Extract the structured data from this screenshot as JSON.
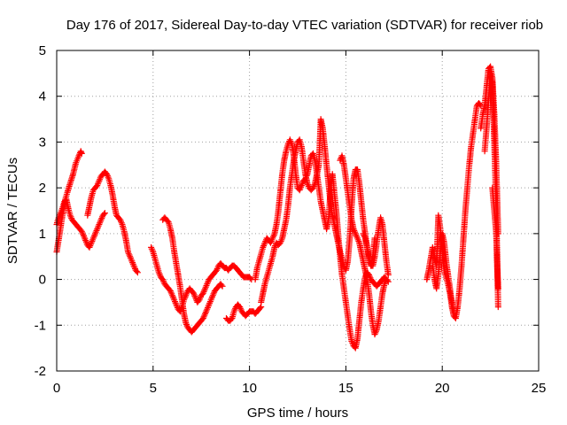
{
  "chart_data": {
    "type": "scatter",
    "title": "Day 176 of 2017, Sidereal Day-to-day VTEC variation (SDTVAR) for receiver riob",
    "xlabel": "GPS time / hours",
    "ylabel": "SDTVAR / TECUs",
    "xlim": [
      0,
      25
    ],
    "ylim": [
      -2,
      5
    ],
    "x_ticks": [
      0,
      5,
      10,
      15,
      20,
      25
    ],
    "y_ticks": [
      -2,
      -1,
      0,
      1,
      2,
      3,
      4,
      5
    ],
    "grid": true,
    "marker": "plus",
    "color": "#ff0000",
    "series": [
      {
        "name": "SDTVAR",
        "segments": [
          {
            "x": [
              0.0,
              0.15,
              0.3,
              0.45,
              0.55,
              0.7,
              0.85,
              1.0,
              1.15,
              1.25,
              1.3
            ],
            "y": [
              0.6,
              1.0,
              1.4,
              1.75,
              1.9,
              2.1,
              2.3,
              2.55,
              2.7,
              2.8,
              2.75
            ]
          },
          {
            "x": [
              0.0,
              0.1,
              0.2,
              0.3,
              0.4,
              0.5,
              0.6,
              0.7,
              0.8,
              0.9,
              1.0,
              1.1,
              1.2,
              1.3,
              1.4,
              1.5,
              1.6,
              1.7,
              1.8,
              1.9,
              2.0,
              2.1,
              2.2,
              2.3,
              2.4,
              2.5
            ],
            "y": [
              1.2,
              1.35,
              1.45,
              1.55,
              1.7,
              1.75,
              1.55,
              1.4,
              1.3,
              1.25,
              1.2,
              1.15,
              1.1,
              1.05,
              0.95,
              0.85,
              0.75,
              0.7,
              0.8,
              0.9,
              1.0,
              1.1,
              1.2,
              1.3,
              1.4,
              1.45
            ]
          },
          {
            "x": [
              1.6,
              1.7,
              1.8,
              1.9,
              2.0,
              2.1,
              2.2,
              2.3,
              2.4,
              2.5,
              2.6,
              2.7,
              2.8,
              2.9,
              3.0,
              3.1,
              3.2,
              3.3,
              3.4,
              3.5,
              3.6,
              3.7,
              3.8,
              3.9,
              4.0,
              4.1,
              4.2
            ],
            "y": [
              1.4,
              1.6,
              1.8,
              1.95,
              2.0,
              2.05,
              2.15,
              2.25,
              2.3,
              2.35,
              2.3,
              2.2,
              2.05,
              1.85,
              1.6,
              1.4,
              1.35,
              1.3,
              1.2,
              1.05,
              0.85,
              0.6,
              0.5,
              0.4,
              0.3,
              0.2,
              0.15
            ]
          },
          {
            "x": [
              4.9,
              5.0,
              5.1,
              5.2,
              5.3,
              5.4,
              5.5,
              5.6,
              5.7,
              5.8,
              5.9,
              6.0,
              6.1,
              6.2,
              6.3,
              6.4,
              6.5,
              6.6,
              6.7,
              6.8,
              6.9,
              7.0,
              7.1,
              7.2,
              7.3,
              7.4,
              7.5,
              7.6,
              7.7,
              7.8,
              7.9,
              8.0,
              8.1,
              8.2,
              8.3,
              8.4,
              8.5,
              8.6,
              8.7,
              8.8,
              8.9,
              9.0,
              9.1,
              9.2,
              9.3,
              9.4,
              9.5,
              9.6,
              9.7,
              9.8,
              9.9,
              10.0,
              10.1
            ],
            "y": [
              0.7,
              0.6,
              0.45,
              0.3,
              0.15,
              0.05,
              0.0,
              -0.1,
              -0.15,
              -0.2,
              -0.25,
              -0.35,
              -0.45,
              -0.55,
              -0.65,
              -0.7,
              -0.6,
              -0.45,
              -0.35,
              -0.25,
              -0.2,
              -0.25,
              -0.3,
              -0.4,
              -0.5,
              -0.45,
              -0.35,
              -0.3,
              -0.2,
              -0.1,
              0.0,
              0.05,
              0.1,
              0.15,
              0.2,
              0.3,
              0.35,
              0.3,
              0.25,
              0.25,
              0.2,
              0.25,
              0.3,
              0.3,
              0.25,
              0.2,
              0.15,
              0.1,
              0.05,
              0.05,
              0.05,
              0.05,
              0.0
            ]
          },
          {
            "x": [
              5.5,
              5.6,
              5.7,
              5.8,
              5.9,
              6.0,
              6.1,
              6.2,
              6.3,
              6.4,
              6.5,
              6.6,
              6.7,
              6.8,
              6.9,
              7.0,
              7.1,
              7.2,
              7.3,
              7.4,
              7.5,
              7.6,
              7.7,
              7.8,
              7.9,
              8.0,
              8.1,
              8.2,
              8.3,
              8.4,
              8.5,
              8.6
            ],
            "y": [
              1.3,
              1.35,
              1.3,
              1.25,
              1.1,
              0.9,
              0.6,
              0.35,
              0.1,
              -0.15,
              -0.45,
              -0.75,
              -0.95,
              -1.05,
              -1.1,
              -1.15,
              -1.1,
              -1.05,
              -1.0,
              -0.95,
              -0.9,
              -0.85,
              -0.75,
              -0.65,
              -0.55,
              -0.45,
              -0.35,
              -0.25,
              -0.2,
              -0.15,
              -0.1,
              -0.15
            ]
          },
          {
            "x": [
              8.8,
              8.9,
              9.0,
              9.1,
              9.2,
              9.3,
              9.4,
              9.5,
              9.6,
              9.7,
              9.8,
              9.9,
              10.0,
              10.1,
              10.2,
              10.3,
              10.4,
              10.5,
              10.6
            ],
            "y": [
              -0.85,
              -0.9,
              -0.9,
              -0.85,
              -0.7,
              -0.6,
              -0.55,
              -0.6,
              -0.7,
              -0.75,
              -0.8,
              -0.75,
              -0.7,
              -0.7,
              -0.7,
              -0.75,
              -0.7,
              -0.65,
              -0.6
            ]
          },
          {
            "x": [
              10.3,
              10.4,
              10.5,
              10.6,
              10.7,
              10.8,
              10.9,
              11.0,
              11.1,
              11.2,
              11.3,
              11.4,
              11.5,
              11.6,
              11.7,
              11.8,
              11.9,
              12.0,
              12.1,
              12.2,
              12.3,
              12.4,
              12.5,
              12.6,
              12.7,
              12.8,
              12.9,
              13.0,
              13.1,
              13.2,
              13.3,
              13.4,
              13.5,
              13.6,
              13.7,
              13.8,
              13.9,
              14.0,
              14.1,
              14.2,
              14.3,
              14.4,
              14.5,
              14.6,
              14.7,
              14.8,
              14.9,
              15.0,
              15.1,
              15.2,
              15.3,
              15.4,
              15.5,
              15.6,
              15.7,
              15.8,
              15.9,
              16.0,
              16.1,
              16.2,
              16.3,
              16.4,
              16.5,
              16.6,
              16.7,
              16.8,
              16.9,
              17.0,
              17.1,
              17.2
            ],
            "y": [
              0.0,
              0.25,
              0.4,
              0.55,
              0.7,
              0.8,
              0.9,
              0.85,
              0.8,
              0.9,
              1.0,
              1.2,
              1.5,
              1.9,
              2.3,
              2.6,
              2.8,
              2.95,
              3.05,
              2.95,
              2.7,
              2.3,
              2.0,
              1.95,
              2.05,
              2.15,
              2.2,
              2.3,
              2.5,
              2.7,
              2.75,
              2.6,
              2.3,
              2.0,
              1.7,
              1.5,
              1.3,
              1.1,
              1.3,
              1.9,
              2.3,
              1.9,
              1.5,
              1.0,
              0.5,
              0.1,
              -0.2,
              -0.5,
              -0.8,
              -1.1,
              -1.35,
              -1.45,
              -1.5,
              -1.3,
              -0.9,
              -0.5,
              -0.2,
              0.05,
              0.15,
              0.1,
              0.0,
              -0.05,
              -0.1,
              -0.15,
              -0.1,
              -0.05,
              0.0,
              0.05,
              0.0,
              -0.05
            ]
          },
          {
            "x": [
              10.6,
              10.7,
              10.8,
              10.9,
              11.0,
              11.1,
              11.2,
              11.3,
              11.4,
              11.5,
              11.6,
              11.7,
              11.8,
              11.9,
              12.0,
              12.1,
              12.2,
              12.3,
              12.4,
              12.5,
              12.6,
              12.7,
              12.8,
              12.9,
              13.0,
              13.1,
              13.2,
              13.3,
              13.4,
              13.5,
              13.6,
              13.7,
              13.8,
              13.9,
              14.0,
              14.1,
              14.2,
              14.3,
              14.4,
              14.5,
              14.6,
              14.7,
              14.8,
              14.9,
              15.0,
              15.1,
              15.2,
              15.3,
              15.4,
              15.5,
              15.6,
              15.7,
              15.8,
              15.9,
              16.0,
              16.1,
              16.2,
              16.3,
              16.4,
              16.5
            ],
            "y": [
              -0.5,
              -0.3,
              -0.1,
              0.05,
              0.2,
              0.35,
              0.5,
              0.7,
              0.8,
              0.75,
              0.8,
              0.9,
              1.1,
              1.3,
              1.6,
              2.0,
              2.3,
              2.6,
              2.8,
              3.0,
              3.05,
              2.9,
              2.6,
              2.3,
              2.1,
              2.0,
              1.95,
              2.0,
              2.1,
              2.3,
              2.5,
              3.5,
              3.3,
              2.9,
              2.5,
              2.1,
              1.7,
              1.4,
              1.2,
              1.0,
              0.8,
              0.6,
              0.45,
              0.3,
              0.2,
              0.4,
              0.9,
              1.6,
              2.2,
              2.4,
              2.4,
              2.1,
              1.7,
              1.3,
              1.0,
              0.7,
              0.4,
              0.3,
              0.5,
              0.9
            ]
          },
          {
            "x": [
              14.7,
              14.8,
              14.9,
              15.0,
              15.1,
              15.2,
              15.3,
              15.4,
              15.5,
              15.6,
              15.7,
              15.8,
              15.9,
              16.0,
              16.1,
              16.2,
              16.3,
              16.4,
              16.5,
              16.6,
              16.7,
              16.8,
              16.9,
              17.0,
              17.1
            ],
            "y": [
              2.6,
              2.7,
              2.5,
              2.2,
              1.9,
              1.6,
              1.3,
              1.1,
              1.0,
              0.9,
              0.8,
              0.6,
              0.4,
              0.2,
              0.0,
              -0.3,
              -0.7,
              -1.0,
              -1.2,
              -1.1,
              -0.9,
              -0.6,
              -0.3,
              -0.1,
              0.0
            ]
          },
          {
            "x": [
              15.9,
              16.0,
              16.1,
              16.2,
              16.3,
              16.4,
              16.5,
              16.6,
              16.7,
              16.8,
              16.9,
              17.0,
              17.1,
              17.2
            ],
            "y": [
              1.0,
              0.9,
              0.7,
              0.5,
              0.3,
              0.3,
              0.5,
              0.8,
              1.1,
              1.35,
              1.2,
              0.8,
              0.4,
              0.1
            ]
          },
          {
            "x": [
              19.2,
              19.3,
              19.4,
              19.5,
              19.6,
              19.7,
              19.8,
              19.9,
              20.0,
              20.1,
              20.2,
              20.3,
              20.4,
              20.5,
              20.6,
              20.7,
              20.8,
              20.9,
              21.0,
              21.1,
              21.2,
              21.3,
              21.4,
              21.5,
              21.6,
              21.7,
              21.8,
              21.9,
              22.0
            ],
            "y": [
              0.0,
              0.2,
              0.45,
              0.7,
              0.5,
              0.3,
              1.4,
              1.1,
              0.6,
              0.2,
              0.05,
              -0.1,
              -0.3,
              -0.6,
              -0.8,
              -0.85,
              -0.6,
              -0.2,
              0.3,
              0.9,
              1.5,
              2.0,
              2.5,
              2.9,
              3.2,
              3.5,
              3.8,
              3.85,
              3.8
            ]
          },
          {
            "x": [
              19.5,
              19.6,
              19.7,
              19.8,
              19.9,
              20.0,
              20.1,
              20.2,
              20.3,
              20.4,
              20.5,
              20.6
            ],
            "y": [
              0.3,
              0.0,
              -0.2,
              0.1,
              0.6,
              1.0,
              0.8,
              0.4,
              0.1,
              -0.2,
              -0.5,
              -0.7
            ]
          },
          {
            "x": [
              22.0,
              22.1,
              22.2,
              22.3,
              22.4,
              22.5,
              22.6,
              22.7,
              22.8,
              22.9
            ],
            "y": [
              3.3,
              3.6,
              3.8,
              4.2,
              4.6,
              4.65,
              4.4,
              3.6,
              2.5,
              1.0
            ]
          },
          {
            "x": [
              22.2,
              22.3,
              22.4,
              22.5,
              22.6,
              22.7,
              22.8,
              22.9
            ],
            "y": [
              2.8,
              3.3,
              3.9,
              4.5,
              4.3,
              3.0,
              1.5,
              -0.6
            ]
          },
          {
            "x": [
              22.6,
              22.7,
              22.8,
              22.85,
              22.9
            ],
            "y": [
              2.0,
              1.5,
              1.0,
              0.3,
              -0.2
            ]
          }
        ]
      }
    ]
  }
}
